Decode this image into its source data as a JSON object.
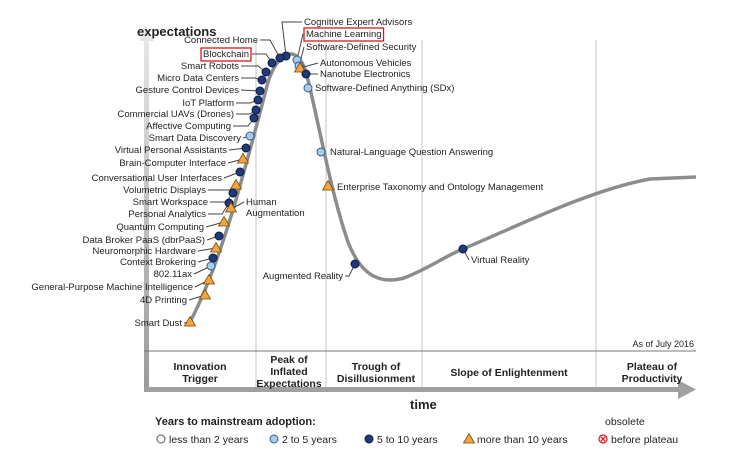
{
  "chart_data": {
    "type": "hype-cycle",
    "ylabel": "expectations",
    "xlabel": "time",
    "as_of": "As of July 2016",
    "phases": [
      {
        "lines": [
          "Innovation",
          "Trigger"
        ]
      },
      {
        "lines": [
          "Peak of",
          "Inflated",
          "Expectations"
        ]
      },
      {
        "lines": [
          "Trough of",
          "Disillusionment"
        ]
      },
      {
        "lines": [
          "Slope of Enlightenment"
        ]
      },
      {
        "lines": [
          "Plateau of",
          "Productivity"
        ]
      }
    ],
    "technologies": [
      {
        "name": "Cognitive Expert Advisors",
        "adoption": "5 to 10 years"
      },
      {
        "name": "Machine Learning",
        "adoption": "2 to 5 years",
        "highlighted": true
      },
      {
        "name": "Software-Defined Security",
        "adoption": "2 to 5 years"
      },
      {
        "name": "Autonomous Vehicles",
        "adoption": "more than 10 years"
      },
      {
        "name": "Nanotube Electronics",
        "adoption": "5 to 10 years"
      },
      {
        "name": "Software-Defined Anything (SDx)",
        "adoption": "2 to 5 years"
      },
      {
        "name": "Natural-Language Question Answering",
        "adoption": "2 to 5 years"
      },
      {
        "name": "Enterprise Taxonomy and Ontology Management",
        "adoption": "more than 10 years"
      },
      {
        "name": "Augmented Reality",
        "adoption": "5 to 10 years"
      },
      {
        "name": "Virtual Reality",
        "adoption": "5 to 10 years"
      },
      {
        "name": "Connected Home",
        "adoption": "5 to 10 years"
      },
      {
        "name": "Blockchain",
        "adoption": "5 to 10 years",
        "highlighted": true
      },
      {
        "name": "Smart Robots",
        "adoption": "5 to 10 years"
      },
      {
        "name": "Micro Data Centers",
        "adoption": "5 to 10 years"
      },
      {
        "name": "Gesture Control Devices",
        "adoption": "5 to 10 years"
      },
      {
        "name": "IoT Platform",
        "adoption": "5 to 10 years"
      },
      {
        "name": "Commercial UAVs (Drones)",
        "adoption": "5 to 10 years"
      },
      {
        "name": "Affective Computing",
        "adoption": "5 to 10 years"
      },
      {
        "name": "Smart Data Discovery",
        "adoption": "2 to 5 years"
      },
      {
        "name": "Virtual Personal Assistants",
        "adoption": "5 to 10 years"
      },
      {
        "name": "Brain-Computer Interface",
        "adoption": "more than 10 years"
      },
      {
        "name": "Conversational User Interfaces",
        "adoption": "5 to 10 years"
      },
      {
        "name": "Volumetric Displays",
        "adoption": "more than 10 years"
      },
      {
        "name": "Smart Workspace",
        "adoption": "5 to 10 years"
      },
      {
        "name": "Personal Analytics",
        "adoption": "5 to 10 years"
      },
      {
        "name": "Human Augmentation",
        "adoption": "more than 10 years"
      },
      {
        "name": "Quantum Computing",
        "adoption": "more than 10 years"
      },
      {
        "name": "Data Broker PaaS (dbrPaaS)",
        "adoption": "5 to 10 years"
      },
      {
        "name": "Neuromorphic Hardware",
        "adoption": "more than 10 years"
      },
      {
        "name": "Context Brokering",
        "adoption": "5 to 10 years"
      },
      {
        "name": "802.11ax",
        "adoption": "2 to 5 years"
      },
      {
        "name": "General-Purpose Machine Intelligence",
        "adoption": "more than 10 years"
      },
      {
        "name": "4D Printing",
        "adoption": "more than 10 years"
      },
      {
        "name": "Smart Dust",
        "adoption": "more than 10 years"
      }
    ],
    "legend": {
      "title": "Years to mainstream adoption:",
      "items": [
        {
          "label": "less than 2 years",
          "marker": "hollow-circle"
        },
        {
          "label": "2 to 5 years",
          "marker": "light-blue-circle"
        },
        {
          "label": "5 to 10 years",
          "marker": "dark-blue-circle"
        },
        {
          "label": "more than 10 years",
          "marker": "orange-triangle"
        },
        {
          "label": "before plateau",
          "marker": "red-x-circle",
          "above": "obsolete"
        }
      ]
    }
  },
  "colors": {
    "curve": "#8c8c8c",
    "dark_blue": "#1f3a7a",
    "light_blue": "#a9cbe8",
    "orange": "#f2a541",
    "highlight": "#d9161c",
    "text": "#222222",
    "divider": "#c4c4c4"
  }
}
